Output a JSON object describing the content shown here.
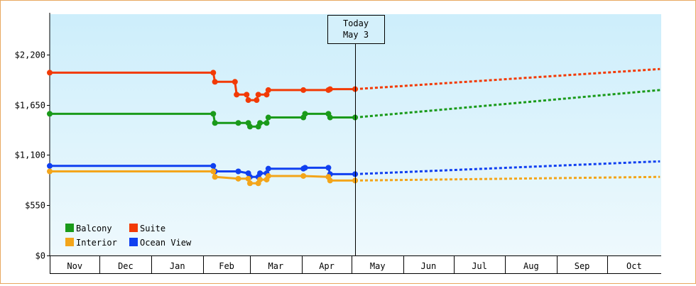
{
  "chart_data": {
    "type": "line",
    "y_ticks": [
      "$0",
      "$550",
      "$1,100",
      "$1,650",
      "$2,200"
    ],
    "ylim": [
      0,
      2640
    ],
    "x_ticks": [
      "Nov",
      "Dec",
      "Jan",
      "Feb",
      "Mar",
      "Apr",
      "May",
      "Jun",
      "Jul",
      "Aug",
      "Sep",
      "Oct"
    ],
    "today_marker": {
      "line1": "Today",
      "line2": "May 3",
      "date": "May 3"
    },
    "legend": [
      {
        "label": "Balcony",
        "color": "#1a9a1a"
      },
      {
        "label": "Suite",
        "color": "#f23a05"
      },
      {
        "label": "Interior",
        "color": "#f3a51a"
      },
      {
        "label": "Ocean View",
        "color": "#1040f0"
      }
    ],
    "grid": false,
    "legend_placement": "bottom-left",
    "series": [
      {
        "name": "Suite",
        "color": "#f23a05",
        "points": [
          [
            "Nov 1",
            2000
          ],
          [
            "Feb 7",
            2000
          ],
          [
            "Feb 8",
            1900
          ],
          [
            "Feb 20",
            1900
          ],
          [
            "Feb 21",
            1760
          ],
          [
            "Feb 27",
            1760
          ],
          [
            "Feb 28",
            1700
          ],
          [
            "Mar 5",
            1700
          ],
          [
            "Mar 6",
            1760
          ],
          [
            "Mar 11",
            1760
          ],
          [
            "Mar 12",
            1810
          ],
          [
            "Apr 2",
            1810
          ],
          [
            "Apr 17",
            1810
          ],
          [
            "Apr 18",
            1820
          ],
          [
            "May 3",
            1820
          ]
        ],
        "forecast": [
          [
            "May 3",
            1820
          ],
          [
            "Oct 31",
            2040
          ]
        ]
      },
      {
        "name": "Balcony",
        "color": "#1a9a1a",
        "points": [
          [
            "Nov 1",
            1550
          ],
          [
            "Feb 7",
            1550
          ],
          [
            "Feb 8",
            1450
          ],
          [
            "Feb 22",
            1450
          ],
          [
            "Feb 28",
            1450
          ],
          [
            "Mar 1",
            1410
          ],
          [
            "Mar 6",
            1410
          ],
          [
            "Mar 7",
            1450
          ],
          [
            "Mar 11",
            1450
          ],
          [
            "Mar 12",
            1510
          ],
          [
            "Apr 2",
            1510
          ],
          [
            "Apr 3",
            1550
          ],
          [
            "Apr 17",
            1550
          ],
          [
            "Apr 18",
            1510
          ],
          [
            "May 3",
            1510
          ]
        ],
        "forecast": [
          [
            "May 3",
            1510
          ],
          [
            "Oct 31",
            1810
          ]
        ]
      },
      {
        "name": "Ocean View",
        "color": "#1040f0",
        "points": [
          [
            "Nov 1",
            980
          ],
          [
            "Feb 7",
            980
          ],
          [
            "Feb 8",
            920
          ],
          [
            "Feb 22",
            920
          ],
          [
            "Feb 28",
            900
          ],
          [
            "Mar 1",
            860
          ],
          [
            "Mar 6",
            860
          ],
          [
            "Mar 7",
            900
          ],
          [
            "Mar 11",
            900
          ],
          [
            "Mar 12",
            950
          ],
          [
            "Apr 2",
            950
          ],
          [
            "Apr 3",
            960
          ],
          [
            "Apr 17",
            960
          ],
          [
            "Apr 18",
            890
          ],
          [
            "May 3",
            890
          ]
        ],
        "forecast": [
          [
            "May 3",
            890
          ],
          [
            "Oct 31",
            1030
          ]
        ]
      },
      {
        "name": "Interior",
        "color": "#f3a51a",
        "points": [
          [
            "Nov 1",
            920
          ],
          [
            "Feb 7",
            920
          ],
          [
            "Feb 8",
            860
          ],
          [
            "Feb 22",
            840
          ],
          [
            "Feb 28",
            840
          ],
          [
            "Mar 1",
            790
          ],
          [
            "Mar 6",
            790
          ],
          [
            "Mar 7",
            830
          ],
          [
            "Mar 11",
            830
          ],
          [
            "Mar 12",
            870
          ],
          [
            "Apr 2",
            870
          ],
          [
            "Apr 17",
            860
          ],
          [
            "Apr 18",
            820
          ],
          [
            "May 3",
            820
          ]
        ],
        "forecast": [
          [
            "May 3",
            820
          ],
          [
            "Oct 31",
            860
          ]
        ]
      }
    ]
  }
}
